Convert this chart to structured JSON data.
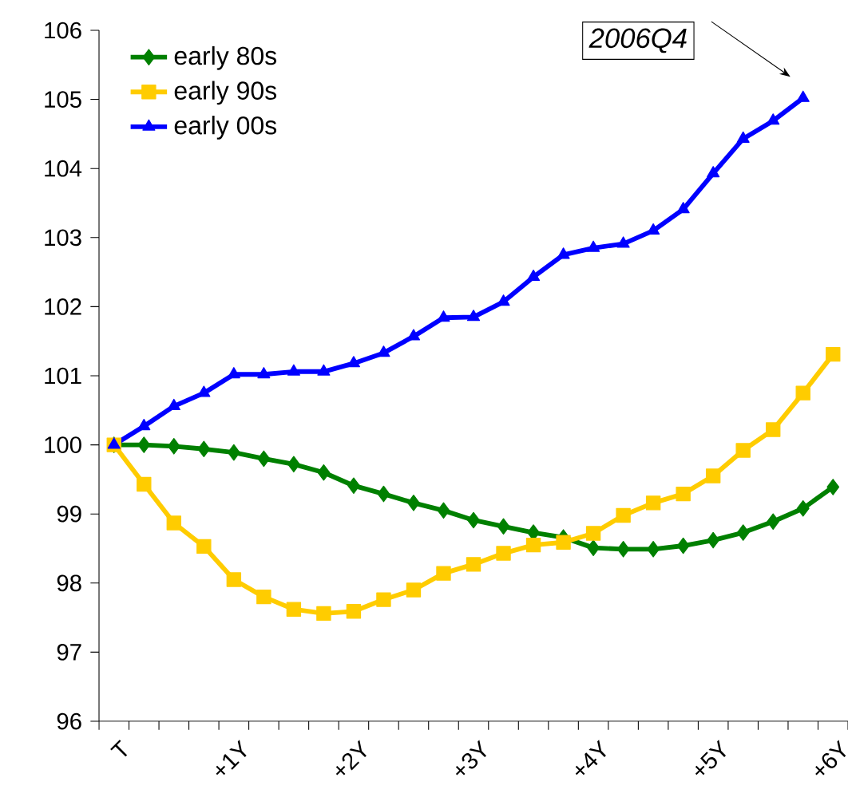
{
  "chart_data": {
    "type": "line",
    "categories": [
      "T",
      null,
      null,
      null,
      "+1Y",
      null,
      null,
      null,
      "+2Y",
      null,
      null,
      null,
      "+3Y",
      null,
      null,
      null,
      "+4Y",
      null,
      null,
      null,
      "+5Y",
      null,
      null,
      null,
      "+6Y"
    ],
    "series": [
      {
        "name": "early 80s",
        "color": "#008000",
        "marker": "diamond",
        "values": [
          100,
          100,
          99.98,
          99.94,
          99.89,
          99.8,
          99.72,
          99.6,
          99.41,
          99.29,
          99.16,
          99.05,
          98.91,
          98.82,
          98.73,
          98.66,
          98.51,
          98.49,
          98.49,
          98.54,
          98.62,
          98.73,
          98.89,
          99.08,
          99.39
        ]
      },
      {
        "name": "early 90s",
        "color": "#ffcc00",
        "marker": "square",
        "values": [
          100,
          99.43,
          98.87,
          98.53,
          98.05,
          97.8,
          97.62,
          97.56,
          97.59,
          97.76,
          97.9,
          98.14,
          98.27,
          98.43,
          98.55,
          98.59,
          98.72,
          98.98,
          99.16,
          99.29,
          99.55,
          99.92,
          100.22,
          100.75,
          101.31
        ]
      },
      {
        "name": "early 00s",
        "color": "#0000ff",
        "marker": "triangle",
        "values": [
          100,
          100.27,
          100.56,
          100.75,
          101.02,
          101.02,
          101.06,
          101.06,
          101.18,
          101.33,
          101.57,
          101.84,
          101.85,
          102.07,
          102.43,
          102.75,
          102.85,
          102.91,
          103.1,
          103.41,
          103.93,
          104.43,
          104.69,
          105.02,
          null
        ]
      }
    ],
    "ylim": [
      96,
      106
    ],
    "yticks": [
      96,
      97,
      98,
      99,
      100,
      101,
      102,
      103,
      104,
      105,
      106
    ],
    "legend": "top left",
    "grid": false,
    "line_style": "solid",
    "annotations": [
      "2006Q4"
    ]
  }
}
